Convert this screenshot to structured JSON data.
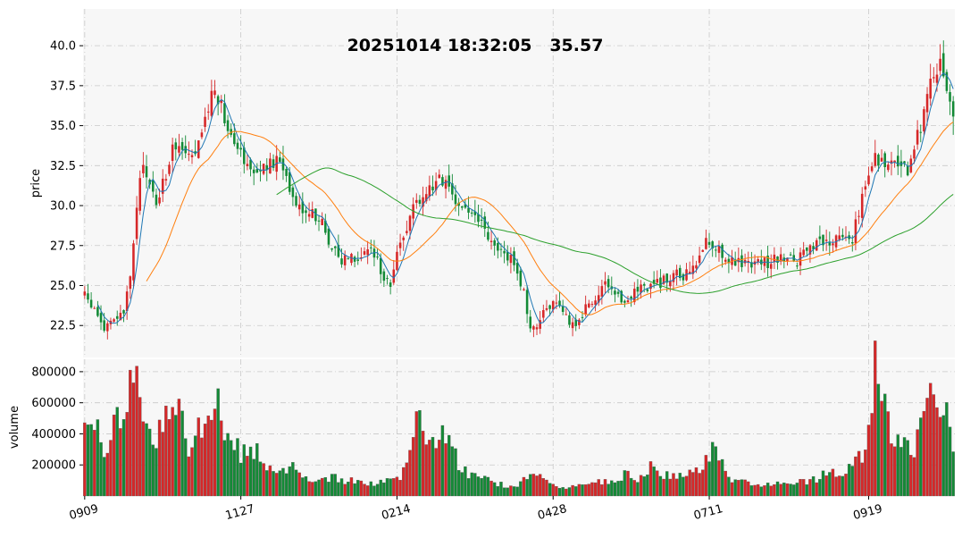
{
  "chart_data": {
    "type": "candlestick",
    "title": "20251014 18:32:05   35.57",
    "ylabel_price": "price",
    "ylabel_volume": "volume",
    "price_ticks": [
      22.5,
      25.0,
      27.5,
      30.0,
      32.5,
      35.0,
      37.5,
      40.0
    ],
    "price_ylim": [
      20.5,
      42.3
    ],
    "volume_ticks": [
      200000,
      400000,
      600000,
      800000
    ],
    "volume_ylim": [
      0,
      880000
    ],
    "x_tick_labels": [
      "0909",
      "1127",
      "0214",
      "0428",
      "0711",
      "0919"
    ],
    "grid": true,
    "colors": {
      "up": "#d62728",
      "down": "#138a36",
      "ma_short": "#1f77b4",
      "ma_mid": "#ff7f0e",
      "ma_long": "#2ca02c",
      "panel_bg": "#f7f7f7",
      "grid": "#c8c8c8"
    },
    "moving_averages": [
      "ma_short",
      "ma_mid",
      "ma_long"
    ],
    "close_anchors": [
      [
        0,
        24.3
      ],
      [
        3,
        23.5
      ],
      [
        6,
        22.3
      ],
      [
        9,
        22.8
      ],
      [
        12,
        23.3
      ],
      [
        14,
        25.5
      ],
      [
        16,
        29.8
      ],
      [
        18,
        32.8
      ],
      [
        20,
        31.2
      ],
      [
        22,
        30.2
      ],
      [
        25,
        32.0
      ],
      [
        28,
        34.0
      ],
      [
        31,
        33.2
      ],
      [
        34,
        32.8
      ],
      [
        37,
        35.5
      ],
      [
        40,
        37.5
      ],
      [
        42,
        36.2
      ],
      [
        44,
        35.0
      ],
      [
        47,
        34.0
      ],
      [
        50,
        32.5
      ],
      [
        53,
        32.2
      ],
      [
        56,
        32.3
      ],
      [
        59,
        32.8
      ],
      [
        62,
        32.0
      ],
      [
        64,
        30.6
      ],
      [
        67,
        29.8
      ],
      [
        70,
        29.6
      ],
      [
        73,
        28.8
      ],
      [
        76,
        27.5
      ],
      [
        79,
        26.5
      ],
      [
        81,
        27.0
      ],
      [
        84,
        26.8
      ],
      [
        87,
        27.3
      ],
      [
        90,
        26.6
      ],
      [
        92,
        25.6
      ],
      [
        94,
        25.2
      ],
      [
        96,
        26.8
      ],
      [
        98,
        28.0
      ],
      [
        100,
        29.6
      ],
      [
        103,
        30.5
      ],
      [
        106,
        31.0
      ],
      [
        109,
        32.0
      ],
      [
        111,
        31.2
      ],
      [
        113,
        30.3
      ],
      [
        116,
        30.0
      ],
      [
        119,
        29.5
      ],
      [
        122,
        28.8
      ],
      [
        125,
        27.5
      ],
      [
        128,
        27.0
      ],
      [
        131,
        26.9
      ],
      [
        133,
        25.8
      ],
      [
        135,
        24.5
      ],
      [
        137,
        22.0
      ],
      [
        139,
        22.7
      ],
      [
        141,
        23.5
      ],
      [
        144,
        23.8
      ],
      [
        147,
        23.2
      ],
      [
        149,
        22.8
      ],
      [
        151,
        22.6
      ],
      [
        153,
        23.2
      ],
      [
        155,
        23.9
      ],
      [
        158,
        24.5
      ],
      [
        160,
        24.9
      ],
      [
        163,
        24.2
      ],
      [
        166,
        24.0
      ],
      [
        169,
        24.7
      ],
      [
        172,
        25.0
      ],
      [
        175,
        25.0
      ],
      [
        178,
        25.3
      ],
      [
        181,
        25.7
      ],
      [
        184,
        25.5
      ],
      [
        187,
        26.0
      ],
      [
        189,
        26.8
      ],
      [
        191,
        27.8
      ],
      [
        194,
        27.5
      ],
      [
        197,
        26.8
      ],
      [
        200,
        26.5
      ],
      [
        203,
        26.3
      ],
      [
        206,
        26.6
      ],
      [
        209,
        26.4
      ],
      [
        212,
        26.6
      ],
      [
        215,
        26.8
      ],
      [
        218,
        26.5
      ],
      [
        221,
        26.9
      ],
      [
        224,
        27.4
      ],
      [
        227,
        27.6
      ],
      [
        230,
        27.8
      ],
      [
        233,
        28.0
      ],
      [
        236,
        28.0
      ],
      [
        237,
        29.0
      ],
      [
        239,
        30.5
      ],
      [
        241,
        32.0
      ],
      [
        243,
        33.0
      ],
      [
        246,
        32.8
      ],
      [
        249,
        32.5
      ],
      [
        251,
        32.5
      ],
      [
        253,
        32.2
      ],
      [
        255,
        33.5
      ],
      [
        257,
        35.0
      ],
      [
        259,
        37.5
      ],
      [
        261,
        38.5
      ],
      [
        263,
        39.0
      ],
      [
        265,
        37.5
      ],
      [
        267,
        35.57
      ]
    ],
    "volume_anchors": [
      [
        0,
        450000
      ],
      [
        3,
        520000
      ],
      [
        5,
        280000
      ],
      [
        8,
        380000
      ],
      [
        10,
        540000
      ],
      [
        12,
        560000
      ],
      [
        14,
        780000
      ],
      [
        15,
        850000
      ],
      [
        17,
        600000
      ],
      [
        19,
        430000
      ],
      [
        22,
        360000
      ],
      [
        25,
        500000
      ],
      [
        27,
        530000
      ],
      [
        29,
        700000
      ],
      [
        31,
        350000
      ],
      [
        33,
        300000
      ],
      [
        35,
        420000
      ],
      [
        38,
        460000
      ],
      [
        40,
        600000
      ],
      [
        42,
        520000
      ],
      [
        45,
        380000
      ],
      [
        48,
        280000
      ],
      [
        51,
        300000
      ],
      [
        54,
        260000
      ],
      [
        56,
        160000
      ],
      [
        59,
        170000
      ],
      [
        62,
        150000
      ],
      [
        64,
        190000
      ],
      [
        66,
        140000
      ],
      [
        69,
        110000
      ],
      [
        72,
        100000
      ],
      [
        75,
        120000
      ],
      [
        78,
        110000
      ],
      [
        81,
        95000
      ],
      [
        84,
        100000
      ],
      [
        87,
        80000
      ],
      [
        90,
        90000
      ],
      [
        93,
        110000
      ],
      [
        95,
        130000
      ],
      [
        97,
        110000
      ],
      [
        100,
        250000
      ],
      [
        102,
        480000
      ],
      [
        104,
        420000
      ],
      [
        106,
        320000
      ],
      [
        108,
        300000
      ],
      [
        110,
        420000
      ],
      [
        112,
        380000
      ],
      [
        114,
        250000
      ],
      [
        116,
        180000
      ],
      [
        118,
        140000
      ],
      [
        121,
        110000
      ],
      [
        124,
        100000
      ],
      [
        127,
        80000
      ],
      [
        130,
        65000
      ],
      [
        133,
        60000
      ],
      [
        136,
        120000
      ],
      [
        139,
        130000
      ],
      [
        142,
        90000
      ],
      [
        145,
        60000
      ],
      [
        148,
        50000
      ],
      [
        151,
        60000
      ],
      [
        154,
        90000
      ],
      [
        157,
        80000
      ],
      [
        160,
        100000
      ],
      [
        163,
        90000
      ],
      [
        166,
        150000
      ],
      [
        169,
        120000
      ],
      [
        172,
        110000
      ],
      [
        175,
        220000
      ],
      [
        178,
        140000
      ],
      [
        181,
        120000
      ],
      [
        184,
        150000
      ],
      [
        187,
        130000
      ],
      [
        190,
        200000
      ],
      [
        193,
        340000
      ],
      [
        196,
        200000
      ],
      [
        199,
        110000
      ],
      [
        202,
        90000
      ],
      [
        205,
        80000
      ],
      [
        208,
        75000
      ],
      [
        211,
        80000
      ],
      [
        214,
        90000
      ],
      [
        217,
        80000
      ],
      [
        220,
        90000
      ],
      [
        223,
        100000
      ],
      [
        226,
        120000
      ],
      [
        229,
        160000
      ],
      [
        232,
        150000
      ],
      [
        235,
        170000
      ],
      [
        238,
        240000
      ],
      [
        240,
        320000
      ],
      [
        242,
        500000
      ],
      [
        243,
        800000
      ],
      [
        244,
        830000
      ],
      [
        246,
        560000
      ],
      [
        248,
        420000
      ],
      [
        251,
        350000
      ],
      [
        253,
        290000
      ],
      [
        255,
        330000
      ],
      [
        257,
        520000
      ],
      [
        259,
        680000
      ],
      [
        261,
        620000
      ],
      [
        263,
        580000
      ],
      [
        265,
        520000
      ],
      [
        267,
        280000
      ]
    ],
    "n_bars": 268
  }
}
